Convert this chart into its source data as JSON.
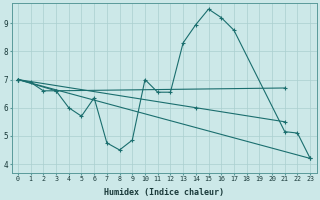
{
  "xlabel": "Humidex (Indice chaleur)",
  "bg_color": "#cce8e8",
  "line_color": "#1a6e6e",
  "grid_color": "#aacfcf",
  "xlim": [
    -0.5,
    23.5
  ],
  "ylim": [
    3.7,
    9.7
  ],
  "yticks": [
    4,
    5,
    6,
    7,
    8,
    9
  ],
  "xticks": [
    0,
    1,
    2,
    3,
    4,
    5,
    6,
    7,
    8,
    9,
    10,
    11,
    12,
    13,
    14,
    15,
    16,
    17,
    18,
    19,
    20,
    21,
    22,
    23
  ],
  "lines": [
    {
      "x": [
        0,
        1,
        2,
        3,
        4,
        5,
        6,
        7,
        8,
        9,
        10,
        11,
        12,
        13,
        14,
        15,
        16,
        17,
        21,
        22,
        23
      ],
      "y": [
        7.0,
        6.9,
        6.6,
        6.6,
        6.0,
        5.7,
        6.35,
        4.75,
        4.5,
        4.85,
        7.0,
        6.55,
        6.55,
        8.3,
        8.95,
        9.5,
        9.2,
        8.75,
        5.15,
        5.1,
        4.2
      ]
    },
    {
      "x": [
        0,
        3,
        21
      ],
      "y": [
        7.0,
        6.6,
        6.7
      ]
    },
    {
      "x": [
        0,
        23
      ],
      "y": [
        7.0,
        4.2
      ]
    },
    {
      "x": [
        0,
        14,
        21
      ],
      "y": [
        7.0,
        6.0,
        5.5
      ]
    }
  ]
}
